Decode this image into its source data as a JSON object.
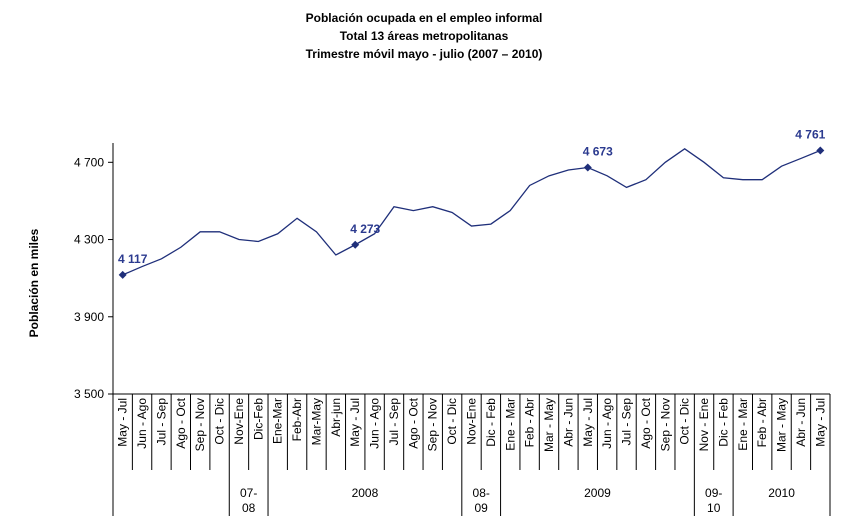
{
  "chart_data": {
    "type": "line",
    "title": [
      "Población ocupada en el empleo informal",
      "Total 13 áreas metropolitanas",
      "Trimestre móvil mayo - julio (2007 – 2010)"
    ],
    "y_label": "Población en miles",
    "categories": [
      "May - Jul",
      "Jun - Ago",
      "Jul - Sep",
      "Ago - Oct",
      "Sep - Nov",
      "Oct - Dic",
      "Nov-Ene",
      "Dic-Feb",
      "Ene-Mar",
      "Feb-Abr",
      "Mar-May",
      "Abr-jun",
      "May - Jul",
      "Jun - Ago",
      "Jul - Sep",
      "Ago - Oct",
      "Sep - Nov",
      "Oct - Dic",
      "Nov-Ene",
      "Dic - Feb",
      "Ene - Mar",
      "Feb - Abr",
      "Mar - May",
      "Abr - Jun",
      "May - Jul",
      "Jun - Ago",
      "Jul - Sep",
      "Ago - Oct",
      "Sep - Nov",
      "Oct - Dic",
      "Nov - Ene",
      "Dic - Feb",
      "Ene - Mar",
      "Feb - Abr",
      "Mar - May",
      "Abr - Jun",
      "May - Jul"
    ],
    "groups": [
      {
        "lines": [],
        "count": 6
      },
      {
        "lines": [
          "07-",
          "08"
        ],
        "count": 2
      },
      {
        "lines": [
          "2008"
        ],
        "count": 10
      },
      {
        "lines": [
          "08-",
          "09"
        ],
        "count": 2
      },
      {
        "lines": [
          "2009"
        ],
        "count": 10
      },
      {
        "lines": [
          "09-",
          "10"
        ],
        "count": 2
      },
      {
        "lines": [
          "2010"
        ],
        "count": 5
      }
    ],
    "series": [
      {
        "color": "#1f2f7a",
        "values": [
          4117,
          4160,
          4200,
          4260,
          4340,
          4340,
          4300,
          4290,
          4330,
          4410,
          4340,
          4220,
          4273,
          4330,
          4470,
          4450,
          4470,
          4440,
          4370,
          4380,
          4450,
          4580,
          4630,
          4660,
          4673,
          4630,
          4570,
          4610,
          4700,
          4770,
          4700,
          4620,
          4610,
          4610,
          4680,
          4720,
          4761
        ],
        "value_labels": [
          "4 117",
          null,
          null,
          null,
          null,
          null,
          null,
          null,
          null,
          null,
          null,
          null,
          "4 273",
          null,
          null,
          null,
          null,
          null,
          null,
          null,
          null,
          null,
          null,
          null,
          "4 673",
          null,
          null,
          null,
          null,
          null,
          null,
          null,
          null,
          null,
          null,
          null,
          "4 761"
        ]
      }
    ],
    "ylim": [
      3500,
      4800
    ],
    "yticks": [
      {
        "value": 3500,
        "label": "3 500"
      },
      {
        "value": 3900,
        "label": "3 900"
      },
      {
        "value": 4300,
        "label": "4 300"
      },
      {
        "value": 4700,
        "label": "4 700"
      }
    ],
    "grid": false
  }
}
